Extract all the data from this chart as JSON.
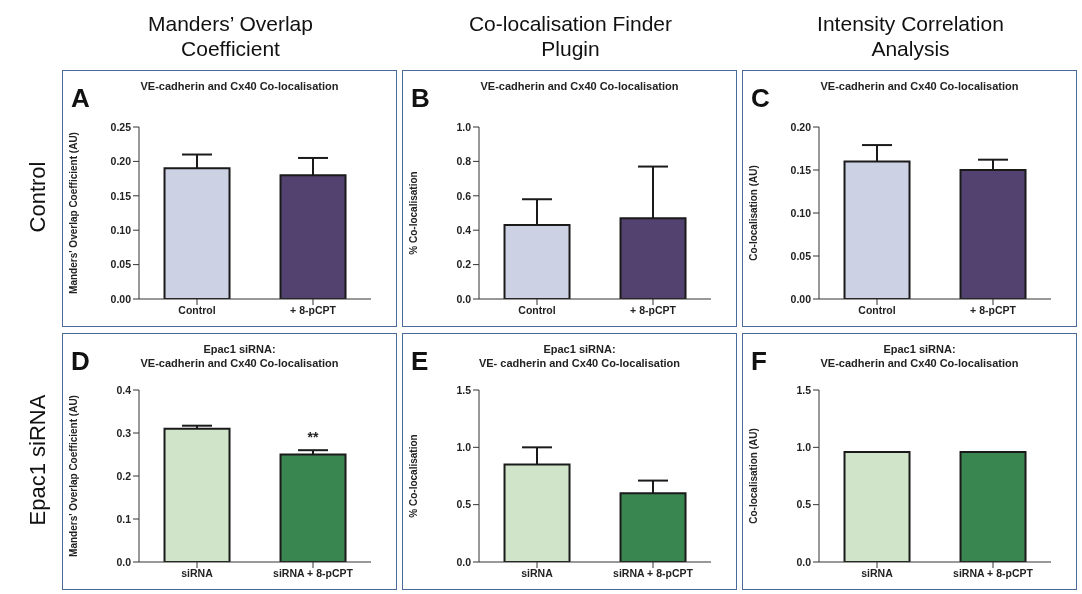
{
  "chart_data": [
    {
      "type": "bar",
      "title": "VE-cadherin and Cx40 Co-localisation",
      "ylabel": "Manders' Overlap Coefficient (AU)",
      "categories": [
        "Control",
        "+ 8-pCPT"
      ],
      "values": [
        0.19,
        0.18
      ],
      "colors": [
        "#cdd1e4",
        "#53416f"
      ],
      "errors": [
        [
          0.19,
          0.21
        ],
        [
          0.18,
          0.205
        ]
      ],
      "ylim": [
        0,
        0.25
      ],
      "yticks": [
        {
          "value": 0,
          "label": "0.00"
        },
        0.05,
        {
          "value": 0.1,
          "label": "0.10"
        },
        0.15,
        {
          "value": 0.2,
          "label": "0.20"
        },
        0.25
      ],
      "annotations": [
        "A",
        "Manders’ Overlap Coefficient",
        "Control"
      ]
    },
    {
      "type": "bar",
      "title": "VE-cadherin and Cx40 Co-localisation",
      "ylabel": "% Co-localisation",
      "categories": [
        "Control",
        "+ 8-pCPT"
      ],
      "values": [
        0.43,
        0.47
      ],
      "colors": [
        "#cdd1e4",
        "#53416f"
      ],
      "errors": [
        [
          0.43,
          0.58
        ],
        [
          0.47,
          0.77
        ]
      ],
      "ylim": [
        0,
        1
      ],
      "yticks": [
        {
          "value": 0,
          "label": "0.0"
        },
        0.2,
        0.4,
        0.6,
        0.8,
        {
          "value": 1,
          "label": "1.0"
        }
      ],
      "annotations": [
        "B",
        "Co-localisation Finder Plugin"
      ]
    },
    {
      "type": "bar",
      "title": "VE-cadherin and Cx40 Co-localisation",
      "ylabel": "Co-localisation (AU)",
      "categories": [
        "Control",
        "+ 8-pCPT"
      ],
      "values": [
        0.16,
        0.15
      ],
      "colors": [
        "#cdd1e4",
        "#53416f"
      ],
      "errors": [
        [
          0.16,
          0.179
        ],
        [
          0.15,
          0.162
        ]
      ],
      "ylim": [
        0,
        0.2
      ],
      "yticks": [
        {
          "value": 0,
          "label": "0.00"
        },
        0.05,
        {
          "value": 0.1,
          "label": "0.10"
        },
        0.15,
        {
          "value": 0.2,
          "label": "0.20"
        }
      ],
      "annotations": [
        "C",
        "Intensity Correlation Analysis"
      ]
    },
    {
      "type": "bar",
      "title": "Epac1 siRNA:",
      "subtitle": "VE-cadherin and Cx40 Co-localisation",
      "ylabel": "Manders' Overlap Coefficient (AU)",
      "categories": [
        "siRNA",
        "siRNA + 8-pCPT"
      ],
      "values": [
        0.31,
        0.25
      ],
      "colors": [
        "#d0e4ca",
        "#3a8651"
      ],
      "errors": [
        [
          0.31,
          0.317
        ],
        [
          0.25,
          0.26
        ]
      ],
      "ylim": [
        0,
        0.4
      ],
      "yticks": [
        {
          "value": 0,
          "label": "0.0"
        },
        0.1,
        0.2,
        0.3,
        0.4
      ],
      "annotations": [
        "D",
        "Epac1 siRNA",
        "**"
      ]
    },
    {
      "type": "bar",
      "title": "Epac1 siRNA:",
      "subtitle": "VE- cadherin and Cx40 Co-localisation",
      "ylabel": "% Co-localisation",
      "categories": [
        "siRNA",
        "siRNA + 8-pCPT"
      ],
      "values": [
        0.85,
        0.6
      ],
      "colors": [
        "#d0e4ca",
        "#3a8651"
      ],
      "errors": [
        [
          0.85,
          1
        ],
        [
          0.6,
          0.71
        ]
      ],
      "ylim": [
        0,
        1.5
      ],
      "yticks": [
        {
          "value": 0,
          "label": "0.0"
        },
        0.5,
        {
          "value": 1,
          "label": "1.0"
        },
        1.5
      ],
      "annotations": [
        "E"
      ]
    },
    {
      "type": "bar",
      "title": "Epac1 siRNA:",
      "subtitle": "VE-cadherin and Cx40 Co-localisation",
      "ylabel": "Co-localisation (AU)",
      "categories": [
        "siRNA",
        "siRNA + 8-pCPT"
      ],
      "values": [
        0.96,
        0.96
      ],
      "colors": [
        "#d0e4ca",
        "#3a8651"
      ],
      "ylim": [
        0,
        1.5
      ],
      "yticks": [
        {
          "value": 0,
          "label": "0.0"
        },
        0.5,
        {
          "value": 1,
          "label": "1.0"
        },
        1.5
      ],
      "annotations": [
        "F"
      ]
    }
  ]
}
